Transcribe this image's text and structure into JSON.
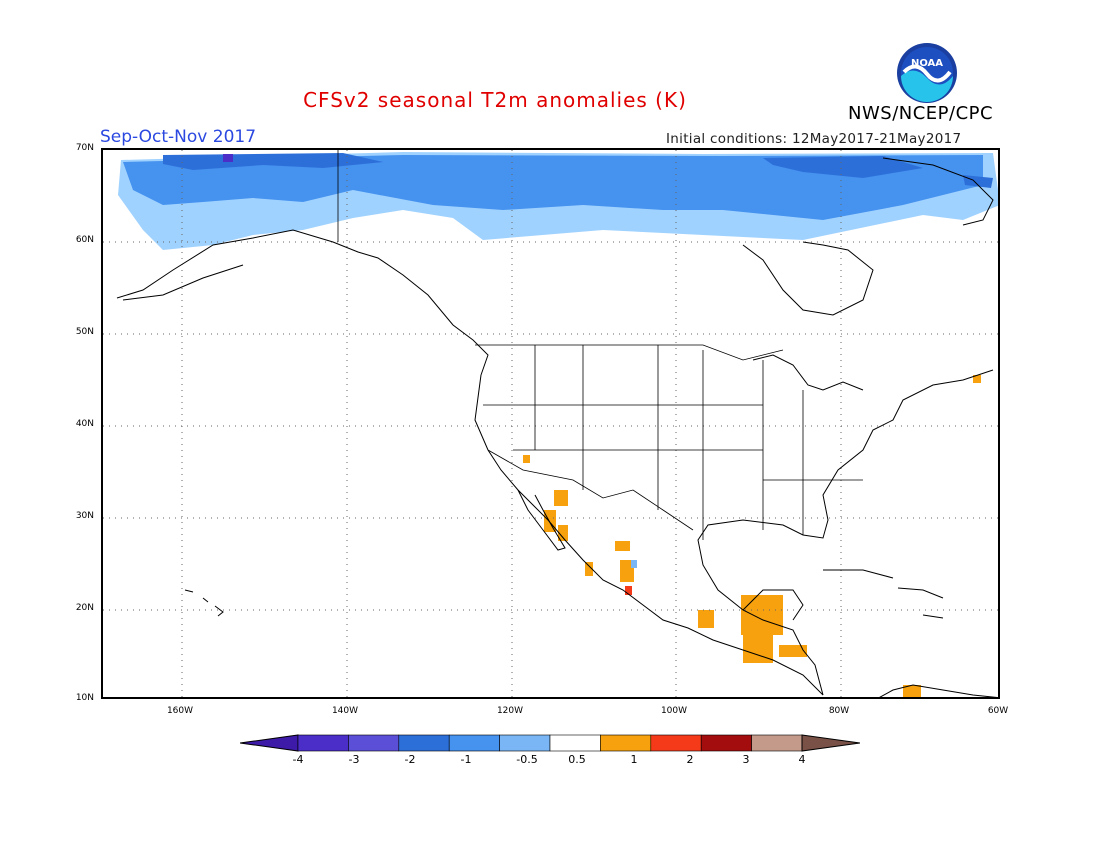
{
  "title": "CFSv2 seasonal T2m anomalies (K)",
  "season": "Sep-Oct-Nov 2017",
  "initial_conditions": "Initial conditions: 12May2017-21May2017",
  "agency": "NWS/NCEP/CPC",
  "logo": {
    "text": "NOAA",
    "icon": "noaa-logo-icon"
  },
  "map": {
    "lat_labels": [
      "70N",
      "60N",
      "50N",
      "40N",
      "30N",
      "20N",
      "10N"
    ],
    "lon_labels": [
      "160W",
      "140W",
      "120W",
      "100W",
      "80W",
      "60W"
    ],
    "grid": "dotted",
    "cold_color": "#a0d2ff",
    "warm_color": "#ffa000"
  },
  "colorbar": {
    "labels": [
      "-4",
      "-3",
      "-2",
      "-1",
      "-0.5",
      "0.5",
      "1",
      "2",
      "3",
      "4"
    ],
    "colors": [
      "#4a2ec7",
      "#5b4fd8",
      "#2d6fd9",
      "#4592ef",
      "#7ab6f6",
      "#ffffff",
      "#f6a10d",
      "#f53a1a",
      "#a40d0d",
      "#c49a8a"
    ],
    "under_color": "#3e1aa8",
    "over_color": "#7a5146"
  }
}
